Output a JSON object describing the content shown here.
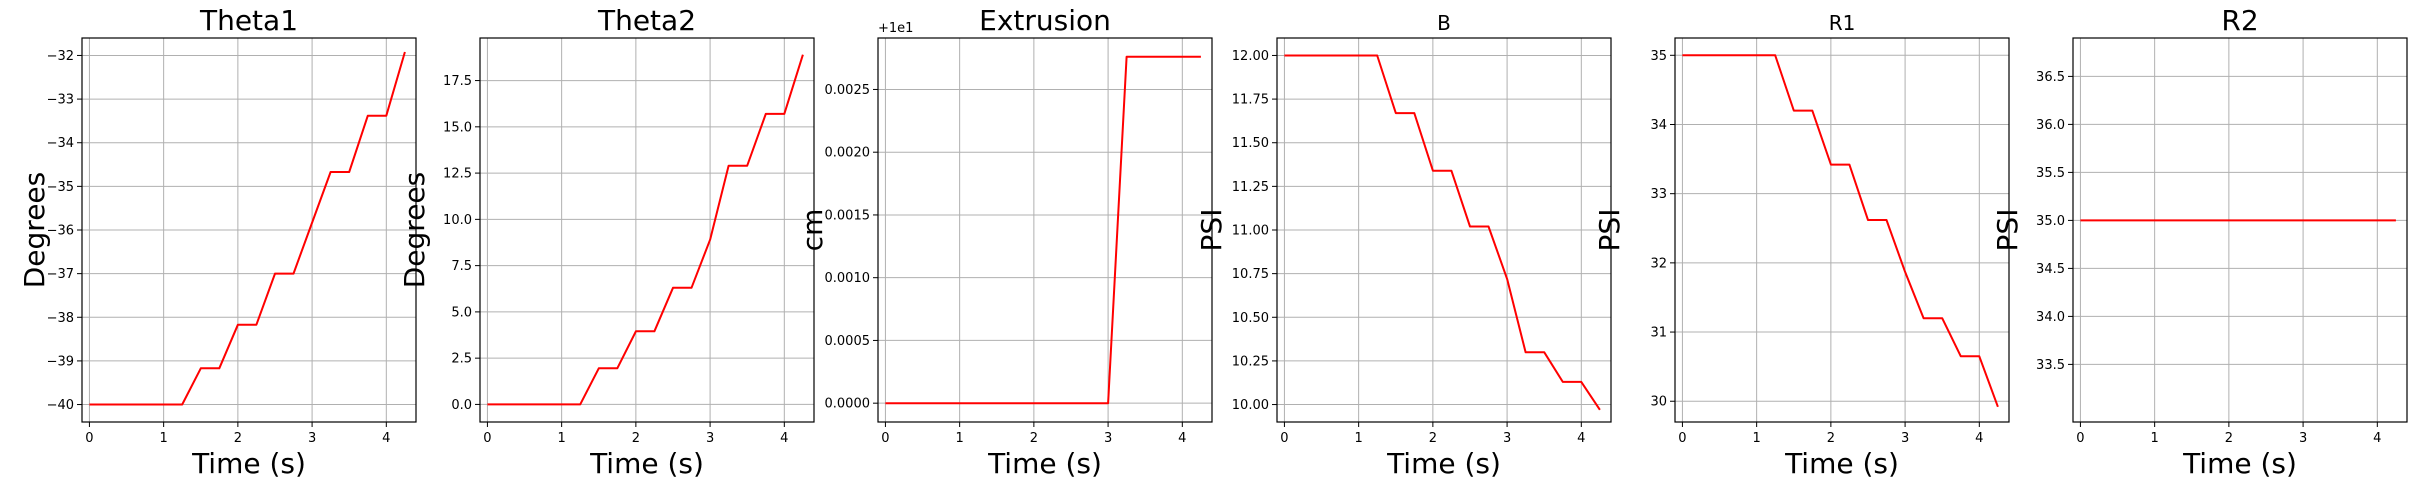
{
  "chart_data": [
    {
      "type": "line",
      "title": "Theta1",
      "xlabel": "Time (s)",
      "ylabel": "Degrees",
      "xlim": [
        -0.1,
        4.4
      ],
      "ylim": [
        -40.4,
        -31.6
      ],
      "xticks": [
        0,
        1,
        2,
        3,
        4
      ],
      "xtick_labels": [
        "0",
        "1",
        "2",
        "3",
        "4"
      ],
      "yticks": [
        -40,
        -39,
        -38,
        -37,
        -36,
        -35,
        -34,
        -33,
        -32
      ],
      "ytick_labels": [
        "−40",
        "−39",
        "−38",
        "−37",
        "−36",
        "−35",
        "−34",
        "−33",
        "−32"
      ],
      "grid": true,
      "line_color": "#ff0000",
      "x": [
        0,
        1.25,
        1.5,
        1.75,
        2.0,
        2.25,
        2.5,
        2.75,
        3.0,
        3.25,
        3.5,
        3.75,
        4.0,
        4.25
      ],
      "y": [
        -40,
        -40,
        -39.17,
        -39.17,
        -38.17,
        -38.17,
        -37.0,
        -37.0,
        -35.83,
        -34.67,
        -34.67,
        -33.38,
        -33.38,
        -31.92
      ]
    },
    {
      "type": "line",
      "title": "Theta2",
      "xlabel": "Time (s)",
      "ylabel": "Degrees",
      "xlim": [
        -0.1,
        4.4
      ],
      "ylim": [
        -0.95,
        19.8
      ],
      "xticks": [
        0,
        1,
        2,
        3,
        4
      ],
      "xtick_labels": [
        "0",
        "1",
        "2",
        "3",
        "4"
      ],
      "yticks": [
        0,
        2.5,
        5,
        7.5,
        10,
        12.5,
        15,
        17.5
      ],
      "ytick_labels": [
        "0.0",
        "2.5",
        "5.0",
        "7.5",
        "10.0",
        "12.5",
        "15.0",
        "17.5"
      ],
      "grid": true,
      "line_color": "#ff0000",
      "x": [
        0,
        1.25,
        1.5,
        1.75,
        2.0,
        2.25,
        2.5,
        2.75,
        3.0,
        3.25,
        3.5,
        3.75,
        4.0,
        4.25
      ],
      "y": [
        0,
        0,
        1.95,
        1.95,
        3.95,
        3.95,
        6.3,
        6.3,
        8.9,
        12.9,
        12.9,
        15.7,
        15.7,
        18.9
      ]
    },
    {
      "type": "line",
      "title": "Extrusion",
      "xlabel": "Time (s)",
      "ylabel": "cm",
      "offset_text": "+1e1",
      "xlim": [
        -0.1,
        4.4
      ],
      "ylim": [
        -0.00015,
        0.00291
      ],
      "xticks": [
        0,
        1,
        2,
        3,
        4
      ],
      "xtick_labels": [
        "0",
        "1",
        "2",
        "3",
        "4"
      ],
      "yticks": [
        0,
        0.0005,
        0.001,
        0.0015,
        0.002,
        0.0025
      ],
      "ytick_labels": [
        "0.0000",
        "0.0005",
        "0.0010",
        "0.0015",
        "0.0020",
        "0.0025"
      ],
      "grid": true,
      "line_color": "#ff0000",
      "x": [
        0,
        3.0,
        3.25,
        4.25
      ],
      "y": [
        0,
        0,
        0.00276,
        0.00276
      ]
    },
    {
      "type": "line",
      "title": "B",
      "xlabel": "Time (s)",
      "ylabel": "PSI",
      "xlim": [
        -0.1,
        4.4
      ],
      "ylim": [
        9.9,
        12.1
      ],
      "xticks": [
        0,
        1,
        2,
        3,
        4
      ],
      "xtick_labels": [
        "0",
        "1",
        "2",
        "3",
        "4"
      ],
      "yticks": [
        10.0,
        10.25,
        10.5,
        10.75,
        11.0,
        11.25,
        11.5,
        11.75,
        12.0
      ],
      "ytick_labels": [
        "10.00",
        "10.25",
        "10.50",
        "10.75",
        "11.00",
        "11.25",
        "11.50",
        "11.75",
        "12.00"
      ],
      "grid": true,
      "line_color": "#ff0000",
      "x": [
        0,
        1.25,
        1.5,
        1.75,
        2.0,
        2.25,
        2.5,
        2.75,
        3.0,
        3.25,
        3.5,
        3.75,
        4.0,
        4.25
      ],
      "y": [
        12.0,
        12.0,
        11.67,
        11.67,
        11.34,
        11.34,
        11.02,
        11.02,
        10.72,
        10.3,
        10.3,
        10.13,
        10.13,
        9.97
      ]
    },
    {
      "type": "line",
      "title": "R1",
      "xlabel": "Time (s)",
      "ylabel": "PSI",
      "xlim": [
        -0.1,
        4.4
      ],
      "ylim": [
        29.7,
        35.25
      ],
      "xticks": [
        0,
        1,
        2,
        3,
        4
      ],
      "xtick_labels": [
        "0",
        "1",
        "2",
        "3",
        "4"
      ],
      "yticks": [
        30,
        31,
        32,
        33,
        34,
        35
      ],
      "ytick_labels": [
        "30",
        "31",
        "32",
        "33",
        "34",
        "35"
      ],
      "grid": true,
      "line_color": "#ff0000",
      "x": [
        0,
        1.25,
        1.5,
        1.75,
        2.0,
        2.25,
        2.5,
        2.75,
        3.0,
        3.25,
        3.5,
        3.75,
        4.0,
        4.25
      ],
      "y": [
        35.0,
        35.0,
        34.2,
        34.2,
        33.42,
        33.42,
        32.62,
        32.62,
        31.87,
        31.2,
        31.2,
        30.65,
        30.65,
        29.92
      ]
    },
    {
      "type": "line",
      "title": "R2",
      "xlabel": "Time (s)",
      "ylabel": "PSI",
      "xlim": [
        -0.1,
        4.4
      ],
      "ylim": [
        32.9,
        36.9
      ],
      "xticks": [
        0,
        1,
        2,
        3,
        4
      ],
      "xtick_labels": [
        "0",
        "1",
        "2",
        "3",
        "4"
      ],
      "yticks": [
        33.5,
        34.0,
        34.5,
        35.0,
        35.5,
        36.0,
        36.5
      ],
      "ytick_labels": [
        "33.5",
        "34.0",
        "34.5",
        "35.0",
        "35.5",
        "36.0",
        "36.5"
      ],
      "grid": true,
      "line_color": "#ff0000",
      "x": [
        0,
        4.25
      ],
      "y": [
        35.0,
        35.0
      ]
    }
  ]
}
